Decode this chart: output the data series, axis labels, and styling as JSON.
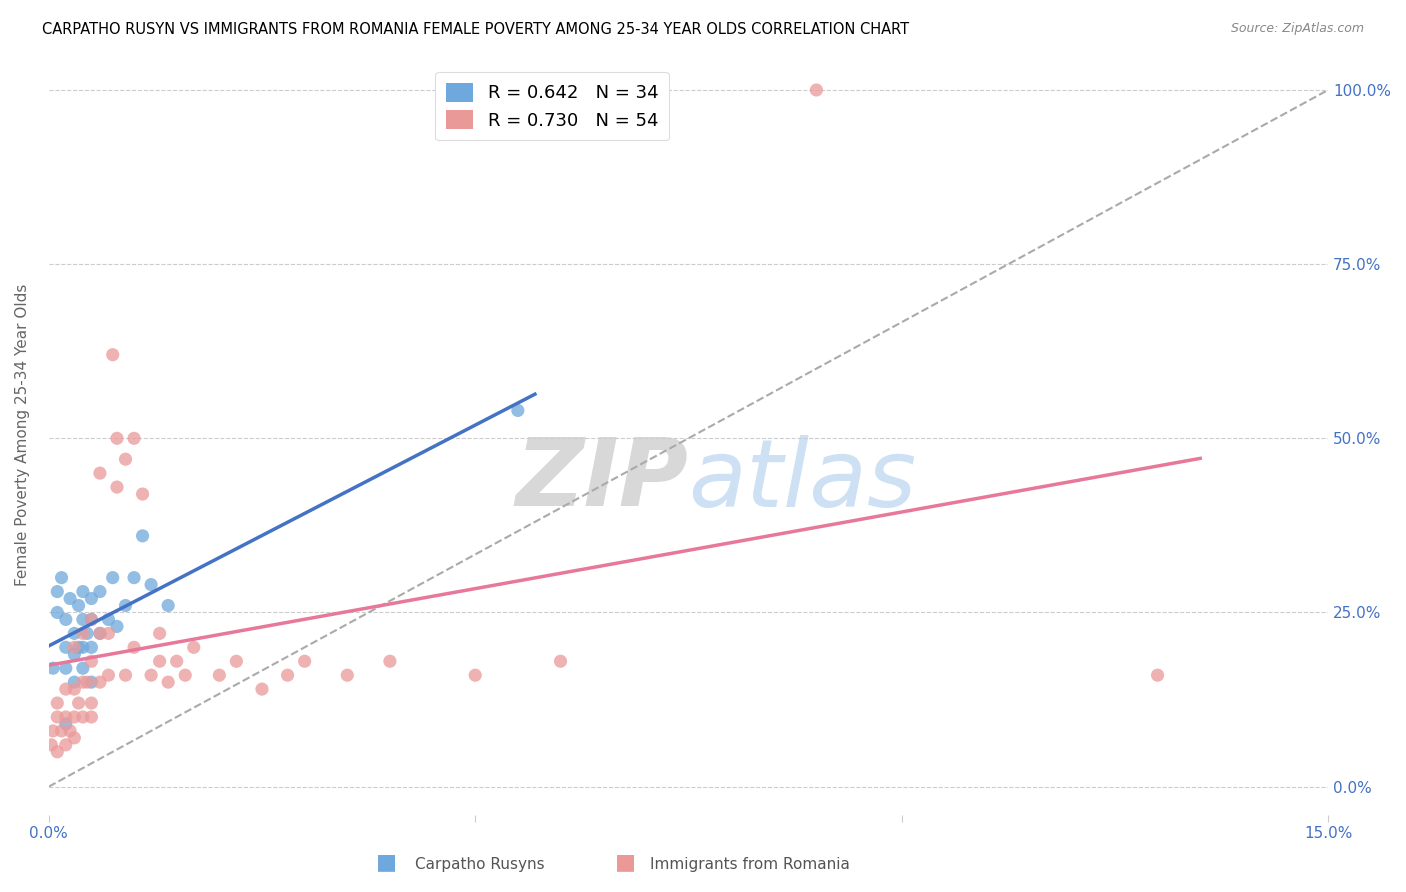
{
  "title": "CARPATHO RUSYN VS IMMIGRANTS FROM ROMANIA FEMALE POVERTY AMONG 25-34 YEAR OLDS CORRELATION CHART",
  "source": "Source: ZipAtlas.com",
  "ylabel": "Female Poverty Among 25-34 Year Olds",
  "xlim": [
    0,
    0.15
  ],
  "ylim": [
    0,
    1.05
  ],
  "ytick_vals": [
    0,
    0.25,
    0.5,
    0.75,
    1.0
  ],
  "color_rusyn": "#6fa8dc",
  "color_romania": "#ea9999",
  "color_rusyn_line": "#4472c4",
  "color_romania_line": "#e8789a",
  "color_ref_line": "#aaaaaa",
  "R_rusyn": 0.642,
  "N_rusyn": 34,
  "R_romania": 0.73,
  "N_romania": 54,
  "legend_label_rusyn": "Carpatho Rusyns",
  "legend_label_romania": "Immigrants from Romania",
  "watermark_zip": "ZIP",
  "watermark_atlas": "atlas",
  "rusyn_x": [
    0.0005,
    0.001,
    0.001,
    0.0015,
    0.002,
    0.002,
    0.002,
    0.002,
    0.0025,
    0.003,
    0.003,
    0.003,
    0.0035,
    0.0035,
    0.004,
    0.004,
    0.004,
    0.004,
    0.0045,
    0.005,
    0.005,
    0.005,
    0.005,
    0.006,
    0.006,
    0.007,
    0.0075,
    0.008,
    0.009,
    0.01,
    0.011,
    0.012,
    0.014,
    0.055
  ],
  "rusyn_y": [
    0.17,
    0.25,
    0.28,
    0.3,
    0.09,
    0.17,
    0.2,
    0.24,
    0.27,
    0.15,
    0.19,
    0.22,
    0.2,
    0.26,
    0.17,
    0.2,
    0.24,
    0.28,
    0.22,
    0.15,
    0.2,
    0.24,
    0.27,
    0.22,
    0.28,
    0.24,
    0.3,
    0.23,
    0.26,
    0.3,
    0.36,
    0.29,
    0.26,
    0.54
  ],
  "romania_x": [
    0.0003,
    0.0005,
    0.001,
    0.001,
    0.001,
    0.0015,
    0.002,
    0.002,
    0.002,
    0.0025,
    0.003,
    0.003,
    0.003,
    0.003,
    0.0035,
    0.004,
    0.004,
    0.004,
    0.0045,
    0.005,
    0.005,
    0.005,
    0.005,
    0.006,
    0.006,
    0.006,
    0.007,
    0.007,
    0.0075,
    0.008,
    0.008,
    0.009,
    0.009,
    0.01,
    0.01,
    0.011,
    0.012,
    0.013,
    0.013,
    0.014,
    0.015,
    0.016,
    0.017,
    0.02,
    0.022,
    0.025,
    0.028,
    0.03,
    0.035,
    0.04,
    0.05,
    0.06,
    0.09,
    0.13
  ],
  "romania_y": [
    0.06,
    0.08,
    0.05,
    0.1,
    0.12,
    0.08,
    0.06,
    0.1,
    0.14,
    0.08,
    0.07,
    0.1,
    0.14,
    0.2,
    0.12,
    0.1,
    0.15,
    0.22,
    0.15,
    0.1,
    0.12,
    0.18,
    0.24,
    0.15,
    0.22,
    0.45,
    0.16,
    0.22,
    0.62,
    0.43,
    0.5,
    0.16,
    0.47,
    0.2,
    0.5,
    0.42,
    0.16,
    0.18,
    0.22,
    0.15,
    0.18,
    0.16,
    0.2,
    0.16,
    0.18,
    0.14,
    0.16,
    0.18,
    0.16,
    0.18,
    0.16,
    0.18,
    1.0,
    0.16
  ],
  "rusyn_line_x": [
    0.0,
    0.057
  ],
  "romania_line_x": [
    0.0,
    0.135
  ],
  "ref_line_x": [
    0.0,
    0.15
  ],
  "ref_line_y": [
    0.0,
    1.0
  ]
}
